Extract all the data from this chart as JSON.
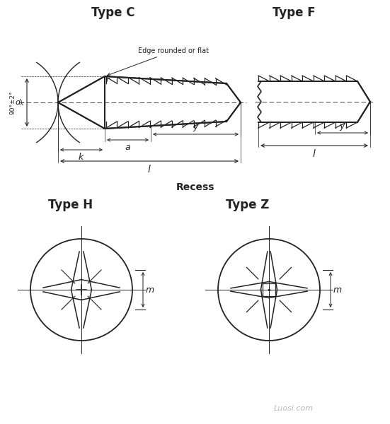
{
  "title_C": "Type C",
  "title_F": "Type F",
  "title_H": "Type H",
  "title_Z": "Type Z",
  "recess_label": "Recess",
  "edge_label": "Edge rounded or flat",
  "bg_color": "#ffffff",
  "line_color": "#222222",
  "watermark": "Luosi.com",
  "fig_width": 5.51,
  "fig_height": 6.0
}
